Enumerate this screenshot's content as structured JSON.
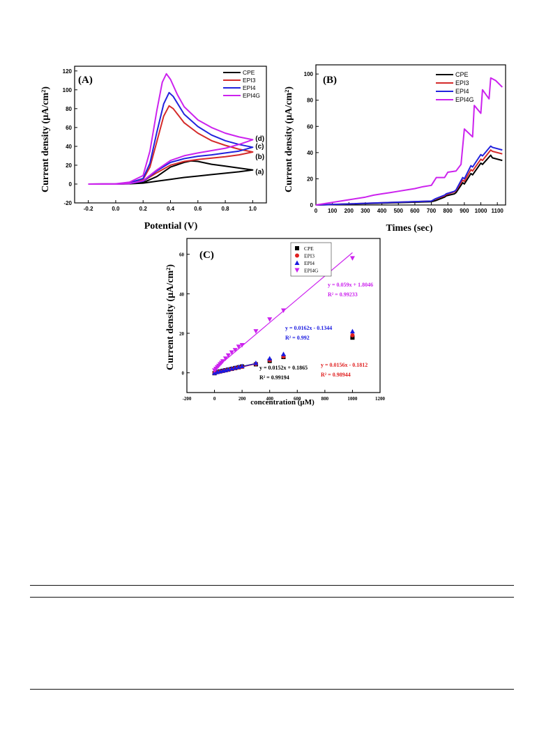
{
  "chart_data": [
    {
      "id": "A",
      "panel_label": "(A)",
      "type": "line",
      "xlabel": "Potential (V)",
      "ylabel": "Current density (µA/cm²)",
      "xlim": [
        -0.3,
        1.1
      ],
      "ylim": [
        -20,
        125
      ],
      "xticks": [
        -0.2,
        0.0,
        0.2,
        0.4,
        0.6,
        0.8,
        1.0
      ],
      "xtick_labels": [
        "-0.2",
        "0.0",
        "0.2",
        "0.4",
        "0.6",
        "0.8",
        "1.0"
      ],
      "yticks": [
        -20,
        0,
        20,
        40,
        60,
        80,
        100,
        120
      ],
      "ytick_labels": [
        "-20",
        "0",
        "20",
        "40",
        "60",
        "80",
        "100",
        "120"
      ],
      "legend_position": "top-right",
      "series": [
        {
          "name": "CPE",
          "color": "#000000",
          "x": [
            -0.2,
            0.0,
            0.1,
            0.2,
            0.3,
            0.4,
            0.5,
            0.55,
            0.6,
            0.7,
            0.8,
            0.9,
            1.0,
            0.9,
            0.8,
            0.7,
            0.6,
            0.5,
            0.4,
            0.3,
            0.2,
            0.1,
            0.0,
            -0.2
          ],
          "y": [
            0,
            0,
            0.3,
            1.5,
            8,
            18,
            23,
            24.5,
            24,
            21,
            19,
            17,
            15,
            13,
            11.5,
            10,
            8.5,
            7,
            5,
            3,
            1,
            0.3,
            0,
            0
          ]
        },
        {
          "name": "EPI3",
          "color": "#d42a2a",
          "x": [
            -0.2,
            0.0,
            0.1,
            0.2,
            0.25,
            0.3,
            0.35,
            0.39,
            0.42,
            0.5,
            0.6,
            0.7,
            0.8,
            0.9,
            1.0,
            0.9,
            0.8,
            0.7,
            0.6,
            0.5,
            0.4,
            0.3,
            0.2,
            0.1,
            0.0,
            -0.2
          ],
          "y": [
            0,
            0.2,
            1,
            5,
            18,
            45,
            72,
            83,
            80,
            65,
            54,
            46,
            41,
            37,
            34,
            31,
            29,
            27.5,
            26,
            24,
            20,
            12,
            3,
            0.5,
            0,
            0
          ]
        },
        {
          "name": "EPI4",
          "color": "#2222dd",
          "x": [
            -0.2,
            0.0,
            0.1,
            0.2,
            0.25,
            0.3,
            0.35,
            0.39,
            0.42,
            0.5,
            0.6,
            0.7,
            0.8,
            0.9,
            1.0,
            0.9,
            0.8,
            0.7,
            0.6,
            0.5,
            0.4,
            0.3,
            0.2,
            0.1,
            0.0,
            -0.2
          ],
          "y": [
            0,
            0.2,
            1.2,
            6,
            22,
            55,
            85,
            97,
            93,
            74,
            61,
            52,
            46,
            42,
            39,
            35,
            33,
            31,
            29.5,
            27,
            23,
            14,
            3,
            0.5,
            0,
            0
          ]
        },
        {
          "name": "EPI4G",
          "color": "#cc22ee",
          "x": [
            -0.2,
            0.0,
            0.1,
            0.2,
            0.25,
            0.3,
            0.34,
            0.37,
            0.4,
            0.45,
            0.5,
            0.6,
            0.7,
            0.8,
            0.9,
            1.0,
            0.9,
            0.8,
            0.7,
            0.6,
            0.5,
            0.4,
            0.3,
            0.2,
            0.1,
            0.0,
            -0.2
          ],
          "y": [
            0,
            0.3,
            2,
            9,
            35,
            78,
            108,
            117,
            111,
            95,
            82,
            68,
            60,
            54,
            50,
            47,
            42,
            38,
            35.5,
            33,
            30,
            25,
            15,
            3.5,
            0.6,
            0,
            0
          ]
        }
      ],
      "annotations": [
        {
          "text": "(d)",
          "x": 1.02,
          "y": 48
        },
        {
          "text": "(c)",
          "x": 1.02,
          "y": 40
        },
        {
          "text": "(b)",
          "x": 1.02,
          "y": 29
        },
        {
          "text": "(a)",
          "x": 1.02,
          "y": 13
        }
      ]
    },
    {
      "id": "B",
      "panel_label": "(B)",
      "type": "line",
      "xlabel": "Times (sec)",
      "ylabel": "Current density (µA/cm²)",
      "xlim": [
        0,
        1150
      ],
      "ylim": [
        0,
        107
      ],
      "xticks": [
        0,
        100,
        200,
        300,
        400,
        500,
        600,
        700,
        800,
        900,
        1000,
        1100
      ],
      "xtick_labels": [
        "0",
        "100",
        "200",
        "300",
        "400",
        "500",
        "600",
        "700",
        "800",
        "900",
        "1000",
        "1100"
      ],
      "yticks": [
        0,
        20,
        40,
        60,
        80,
        100
      ],
      "ytick_labels": [
        "0",
        "20",
        "40",
        "60",
        "80",
        "100"
      ],
      "legend_position": "top-right",
      "series": [
        {
          "name": "CPE",
          "color": "#000000",
          "x": [
            0,
            700,
            725,
            780,
            790,
            840,
            850,
            890,
            900,
            940,
            950,
            1000,
            1010,
            1060,
            1070,
            1130
          ],
          "y": [
            0,
            2.5,
            3.3,
            6,
            7,
            8.5,
            9.5,
            17,
            16,
            24,
            23,
            32,
            31,
            38,
            36,
            34
          ]
        },
        {
          "name": "EPI3",
          "color": "#d42a2a",
          "x": [
            0,
            700,
            725,
            780,
            790,
            840,
            850,
            890,
            900,
            940,
            950,
            1000,
            1010,
            1060,
            1070,
            1130
          ],
          "y": [
            0,
            3,
            4.5,
            7,
            8,
            10,
            11,
            19,
            18,
            27,
            26,
            35,
            34,
            42,
            41,
            39
          ]
        },
        {
          "name": "EPI4",
          "color": "#2222dd",
          "x": [
            0,
            700,
            725,
            780,
            790,
            840,
            850,
            890,
            900,
            940,
            950,
            1000,
            1010,
            1060,
            1070,
            1130
          ],
          "y": [
            0,
            3,
            4.8,
            7.5,
            8.5,
            10.5,
            11.5,
            21,
            20,
            30,
            29,
            38.5,
            37.5,
            45,
            44,
            42
          ]
        },
        {
          "name": "EPI4G",
          "color": "#cc22ee",
          "x": [
            0,
            50,
            100,
            150,
            200,
            250,
            300,
            350,
            400,
            450,
            500,
            550,
            600,
            650,
            700,
            730,
            780,
            800,
            850,
            880,
            900,
            950,
            960,
            1000,
            1010,
            1050,
            1060,
            1090,
            1130
          ],
          "y": [
            0,
            1,
            2,
            3,
            4,
            5,
            6,
            7.5,
            8.5,
            9.5,
            10.5,
            11.5,
            12.5,
            14,
            15,
            21,
            21,
            25,
            26,
            31,
            58,
            52,
            76,
            70,
            88,
            81,
            97,
            95,
            90
          ]
        }
      ]
    },
    {
      "id": "C",
      "panel_label": "(C)",
      "type": "scatter",
      "xlabel": "concentration (µM)",
      "ylabel": "Current density (µA/cm²)",
      "xlim": [
        -200,
        1200
      ],
      "ylim": [
        -10,
        68
      ],
      "xticks": [
        -200,
        0,
        200,
        400,
        600,
        800,
        1000,
        1200
      ],
      "xtick_labels": [
        "-200",
        "0",
        "200",
        "400",
        "600",
        "800",
        "1000",
        "1200"
      ],
      "yticks": [
        0,
        20,
        40,
        60
      ],
      "ytick_labels": [
        "0",
        "20",
        "40",
        "60"
      ],
      "legend_position": "top-center",
      "series": [
        {
          "name": "CPE",
          "color": "#000000",
          "marker": "square",
          "x": [
            0,
            20,
            40,
            60,
            80,
            100,
            125,
            150,
            175,
            200,
            300,
            400,
            500,
            1000
          ],
          "y": [
            -0.2,
            0.4,
            0.7,
            1.0,
            1.3,
            1.6,
            2.0,
            2.4,
            2.8,
            3.2,
            4.3,
            6.0,
            8.0,
            17.8
          ],
          "fit": {
            "slope": 0.0152,
            "intercept": 0.1865,
            "x_range": [
              0,
              300
            ]
          }
        },
        {
          "name": "EPI3",
          "color": "#e02020",
          "marker": "circle",
          "x": [
            0,
            20,
            40,
            60,
            80,
            100,
            125,
            150,
            175,
            200,
            300,
            400,
            500,
            1000
          ],
          "y": [
            -0.1,
            0.3,
            0.6,
            0.9,
            1.2,
            1.5,
            1.9,
            2.3,
            2.7,
            3.0,
            4.5,
            6.4,
            8.3,
            19.0
          ],
          "fit": {
            "slope": 0.0156,
            "intercept": -0.1812,
            "x_range": [
              0,
              300
            ]
          }
        },
        {
          "name": "EPI4",
          "color": "#1a1ae0",
          "marker": "triangle-up",
          "x": [
            0,
            20,
            40,
            60,
            80,
            100,
            125,
            150,
            175,
            200,
            300,
            400,
            500,
            1000
          ],
          "y": [
            0,
            0.4,
            0.8,
            1.1,
            1.4,
            1.8,
            2.2,
            2.6,
            3.0,
            3.4,
            5.0,
            7.3,
            9.5,
            21.0
          ],
          "fit": {
            "slope": 0.0162,
            "intercept": -0.1344,
            "x_range": [
              0,
              300
            ]
          }
        },
        {
          "name": "EPI4G",
          "color": "#cc22ee",
          "marker": "triangle-down",
          "x": [
            0,
            10,
            20,
            30,
            40,
            50,
            60,
            80,
            100,
            125,
            150,
            175,
            200,
            300,
            400,
            500,
            1000
          ],
          "y": [
            1.2,
            2.0,
            2.8,
            3.5,
            4.3,
            5.0,
            5.8,
            7.2,
            8.8,
            10.3,
            11.5,
            13.2,
            14.0,
            21.0,
            27.0,
            31.5,
            58.0
          ],
          "fit": {
            "slope": 0.059,
            "intercept": 1.8046,
            "x_range": [
              0,
              1000
            ]
          }
        }
      ],
      "annotations": [
        {
          "line1": "y = 0.059x + 1.8046",
          "line2": "R² = 0.99233",
          "color": "#cc22ee"
        },
        {
          "line1": "y = 0.0162x - 0.1344",
          "line2": "R² = 0.992",
          "color": "#1a1ae0"
        },
        {
          "line1": "y = 0.0152x + 0.1865",
          "line2": "R² = 0.99194",
          "color": "#000000"
        },
        {
          "line1": "y = 0.0156x - 0.1812",
          "line2": "R² = 0.98944",
          "color": "#e02020"
        }
      ]
    }
  ]
}
